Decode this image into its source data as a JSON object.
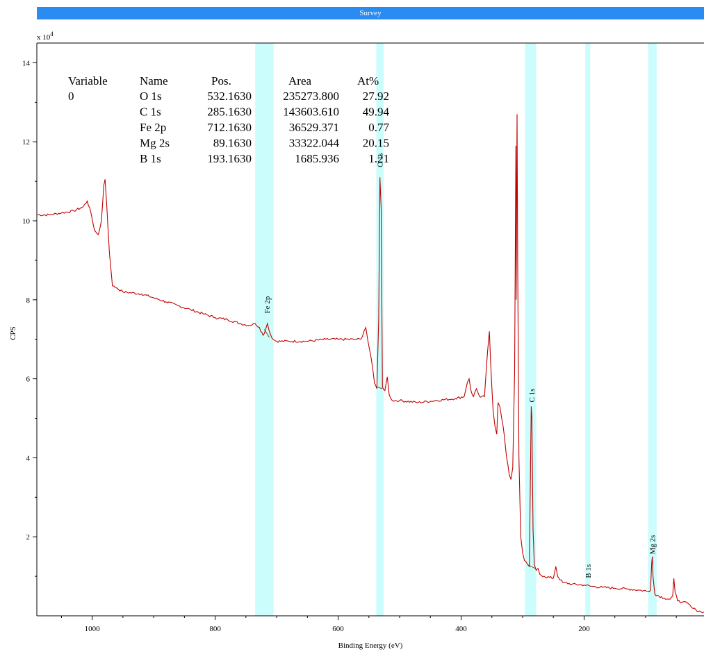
{
  "chart_data": {
    "type": "line",
    "title": "Survey",
    "xlabel": "Binding Energy (eV)",
    "ylabel": "CPS",
    "y_multiplier": "x 10",
    "y_multiplier_exp": "4",
    "xlim": [
      1090,
      5
    ],
    "ylim": [
      0,
      14.5
    ],
    "x_reversed": true,
    "grid": false,
    "x_ticks": [
      1000,
      800,
      600,
      400,
      200
    ],
    "y_ticks": [
      2,
      4,
      6,
      8,
      10,
      12,
      14
    ],
    "colors": {
      "spectrum": "#c00000",
      "background_line": "#6b5a00",
      "region": "#ccfdfd",
      "title_bar": "#2a8cf2"
    },
    "regions": [
      {
        "x0": 735,
        "x1": 705
      },
      {
        "x0": 538,
        "x1": 526
      },
      {
        "x0": 296,
        "x1": 278
      },
      {
        "x0": 198,
        "x1": 190
      },
      {
        "x0": 96,
        "x1": 82
      }
    ],
    "peak_labels": [
      {
        "label": "Fe 2p",
        "x": 716,
        "y": 7.55
      },
      {
        "label": "O 1s",
        "x": 532,
        "y": 11.25
      },
      {
        "label": "C 1s",
        "x": 285,
        "y": 5.3
      },
      {
        "label": "B 1s",
        "x": 194,
        "y": 0.85
      },
      {
        "label": "Mg 2s",
        "x": 89,
        "y": 1.45
      }
    ],
    "quant_table": {
      "columns": [
        "Variable",
        "Name",
        "Pos.",
        "Area",
        "At%"
      ],
      "variable": "0",
      "rows": [
        {
          "name": "O 1s",
          "pos": "532.1630",
          "area": "235273.800",
          "at": "27.92"
        },
        {
          "name": "C 1s",
          "pos": "285.1630",
          "area": "143603.610",
          "at": "49.94"
        },
        {
          "name": "Fe 2p",
          "pos": "712.1630",
          "area": "36529.371",
          "at": "0.77"
        },
        {
          "name": "Mg 2s",
          "pos": "89.1630",
          "area": "33322.044",
          "at": "20.15"
        },
        {
          "name": "B 1s",
          "pos": "193.1630",
          "area": "1685.936",
          "at": "1.21"
        }
      ]
    },
    "series": [
      {
        "points": [
          [
            1090,
            10.15
          ],
          [
            1070,
            10.15
          ],
          [
            1050,
            10.2
          ],
          [
            1030,
            10.25
          ],
          [
            1015,
            10.35
          ],
          [
            1008,
            10.5
          ],
          [
            1002,
            10.2
          ],
          [
            996,
            9.75
          ],
          [
            990,
            9.65
          ],
          [
            985,
            10.0
          ],
          [
            981,
            10.9
          ],
          [
            979,
            11.05
          ],
          [
            976,
            10.3
          ],
          [
            972,
            9.2
          ],
          [
            967,
            8.35
          ],
          [
            960,
            8.3
          ],
          [
            950,
            8.2
          ],
          [
            920,
            8.15
          ],
          [
            900,
            8.05
          ],
          [
            880,
            7.95
          ],
          [
            860,
            7.85
          ],
          [
            840,
            7.75
          ],
          [
            820,
            7.65
          ],
          [
            800,
            7.55
          ],
          [
            780,
            7.5
          ],
          [
            760,
            7.4
          ],
          [
            745,
            7.35
          ],
          [
            735,
            7.4
          ],
          [
            728,
            7.3
          ],
          [
            722,
            7.1
          ],
          [
            718,
            7.25
          ],
          [
            715,
            7.4
          ],
          [
            712,
            7.2
          ],
          [
            706,
            7.0
          ],
          [
            700,
            6.95
          ],
          [
            680,
            6.95
          ],
          [
            650,
            6.95
          ],
          [
            620,
            7.0
          ],
          [
            600,
            7.0
          ],
          [
            575,
            7.0
          ],
          [
            563,
            7.0
          ],
          [
            558,
            7.2
          ],
          [
            555,
            7.3
          ],
          [
            552,
            7.0
          ],
          [
            546,
            6.5
          ],
          [
            541,
            5.9
          ],
          [
            537,
            5.75
          ],
          [
            534,
            7.5
          ],
          [
            532,
            11.1
          ],
          [
            530,
            10.3
          ],
          [
            528,
            5.8
          ],
          [
            524,
            5.7
          ],
          [
            520,
            6.05
          ],
          [
            517,
            5.6
          ],
          [
            512,
            5.45
          ],
          [
            500,
            5.45
          ],
          [
            470,
            5.4
          ],
          [
            440,
            5.45
          ],
          [
            410,
            5.5
          ],
          [
            395,
            5.55
          ],
          [
            390,
            5.9
          ],
          [
            387,
            6.0
          ],
          [
            384,
            5.7
          ],
          [
            380,
            5.55
          ],
          [
            375,
            5.75
          ],
          [
            370,
            5.55
          ],
          [
            362,
            5.55
          ],
          [
            357,
            6.7
          ],
          [
            354,
            7.2
          ],
          [
            352,
            6.4
          ],
          [
            348,
            5.2
          ],
          [
            345,
            4.8
          ],
          [
            342,
            4.6
          ],
          [
            340,
            5.4
          ],
          [
            337,
            5.3
          ],
          [
            334,
            5.0
          ],
          [
            330,
            4.6
          ],
          [
            326,
            4.0
          ],
          [
            322,
            3.6
          ],
          [
            319,
            3.45
          ],
          [
            316,
            3.75
          ],
          [
            313,
            6.2
          ],
          [
            311,
            11.9
          ],
          [
            310.5,
            8.0
          ],
          [
            309,
            12.7
          ],
          [
            308,
            9.0
          ],
          [
            306,
            4.0
          ],
          [
            303,
            2.0
          ],
          [
            300,
            1.6
          ],
          [
            297,
            1.4
          ],
          [
            292,
            1.3
          ],
          [
            289,
            1.25
          ],
          [
            286,
            5.3
          ],
          [
            285,
            5.05
          ],
          [
            283,
            2.2
          ],
          [
            281,
            1.3
          ],
          [
            278,
            1.15
          ],
          [
            275,
            1.2
          ],
          [
            272,
            1.05
          ],
          [
            265,
            1.0
          ],
          [
            250,
            0.95
          ],
          [
            246,
            1.25
          ],
          [
            243,
            1.0
          ],
          [
            235,
            0.85
          ],
          [
            220,
            0.8
          ],
          [
            200,
            0.78
          ],
          [
            190,
            0.75
          ],
          [
            170,
            0.72
          ],
          [
            150,
            0.7
          ],
          [
            130,
            0.68
          ],
          [
            110,
            0.65
          ],
          [
            96,
            0.62
          ],
          [
            92,
            0.65
          ],
          [
            90,
            1.35
          ],
          [
            89,
            1.5
          ],
          [
            88,
            1.0
          ],
          [
            85,
            0.55
          ],
          [
            70,
            0.45
          ],
          [
            60,
            0.42
          ],
          [
            56,
            0.5
          ],
          [
            54,
            0.95
          ],
          [
            52,
            0.6
          ],
          [
            48,
            0.38
          ],
          [
            40,
            0.35
          ],
          [
            30,
            0.3
          ],
          [
            25,
            0.2
          ],
          [
            18,
            0.15
          ],
          [
            10,
            0.1
          ],
          [
            5,
            0.1
          ]
        ]
      }
    ]
  }
}
